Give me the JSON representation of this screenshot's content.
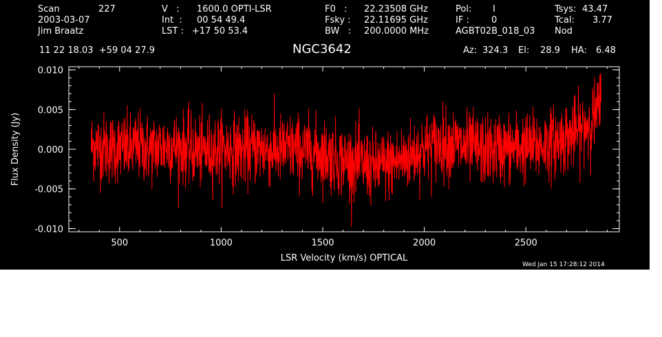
{
  "header": {
    "col1": {
      "scan_label": "Scan",
      "scan_value": "227",
      "date": "2003-03-07",
      "observer": "Jim Braatz"
    },
    "col2": {
      "v_label": "V   :",
      "v_value": "1600.0 OPTI-LSR",
      "int_label": "Int  :",
      "int_value": "00 54 49.4",
      "lst_label": "LST :",
      "lst_value": "+17 50 53.4"
    },
    "col3": {
      "f0_label": "F0   :",
      "f0_value": "22.23508 GHz",
      "fsky_label": "Fsky :",
      "fsky_value": "22.11695 GHz",
      "bw_label": "BW   :",
      "bw_value": "200.0000 MHz"
    },
    "col4": {
      "pol_label": "Pol:",
      "pol_value": "I",
      "if_label": "IF :",
      "if_value": "0",
      "project": "AGBT02B_018_03"
    },
    "col5": {
      "tsys_label": "Tsys:",
      "tsys_value": "43.47",
      "tcal_label": "Tcal:",
      "tcal_value": "3.77",
      "mode": "Nod"
    },
    "coords": "11 22 18.03  +59 04 27.9",
    "source": "NGC3642",
    "az_label": "Az:",
    "az_value": "324.3",
    "el_label": "El:",
    "el_value": "28.9",
    "ha_label": "HA:",
    "ha_value": "6.48"
  },
  "timestamp": "Wed Jan 15 17:28:12 2014",
  "colors": {
    "background": "#000000",
    "foreground": "#ffffff",
    "trace": "#ff0000"
  },
  "chart_data": {
    "type": "line",
    "title": "NGC3642",
    "xlabel": "LSR Velocity (km/s) OPTICAL",
    "ylabel": "Flux Density (Jy)",
    "xlim": [
      250,
      2960
    ],
    "ylim": [
      -0.0104,
      0.0104
    ],
    "xticks": [
      500,
      1000,
      1500,
      2000,
      2500
    ],
    "xtick_labels": [
      "500",
      "1000",
      "1500",
      "2000",
      "2500"
    ],
    "yticks": [
      -0.01,
      -0.005,
      0.0,
      0.005,
      0.01
    ],
    "ytick_labels": [
      "-0.010",
      "-0.005",
      "0.000",
      "0.005",
      "0.010"
    ],
    "grid": false,
    "series": [
      {
        "color": "#ff0000",
        "x": [
          360,
          400,
          450,
          500,
          550,
          600,
          650,
          700,
          750,
          800,
          850,
          900,
          950,
          1000,
          1050,
          1100,
          1150,
          1200,
          1250,
          1300,
          1350,
          1400,
          1450,
          1500,
          1550,
          1600,
          1650,
          1700,
          1750,
          1800,
          1850,
          1900,
          1950,
          2000,
          2050,
          2100,
          2150,
          2200,
          2250,
          2300,
          2350,
          2400,
          2450,
          2500,
          2550,
          2600,
          2650,
          2700,
          2750,
          2800,
          2850,
          2870
        ],
        "y": [
          0.0005,
          0.0003,
          0.0001,
          0.0002,
          0.0,
          0.0004,
          -0.0001,
          0.0003,
          0.0005,
          0.0002,
          0.0,
          -0.0003,
          -0.0001,
          0.0,
          0.0001,
          -0.0002,
          0.0001,
          0.0,
          -0.0002,
          -0.0001,
          0.0001,
          -0.0002,
          -0.0003,
          -0.0005,
          -0.001,
          -0.0014,
          -0.0016,
          -0.0019,
          -0.0023,
          -0.002,
          -0.0017,
          -0.0012,
          -0.0005,
          0.0002,
          0.0005,
          0.0008,
          0.0006,
          0.0002,
          0.0001,
          -0.0002,
          0.0,
          0.0001,
          0.0002,
          0.0003,
          0.0004,
          0.0006,
          0.001,
          0.0015,
          0.0021,
          0.003,
          0.0045,
          0.006
        ],
        "noise_rms": 0.0022
      }
    ]
  }
}
